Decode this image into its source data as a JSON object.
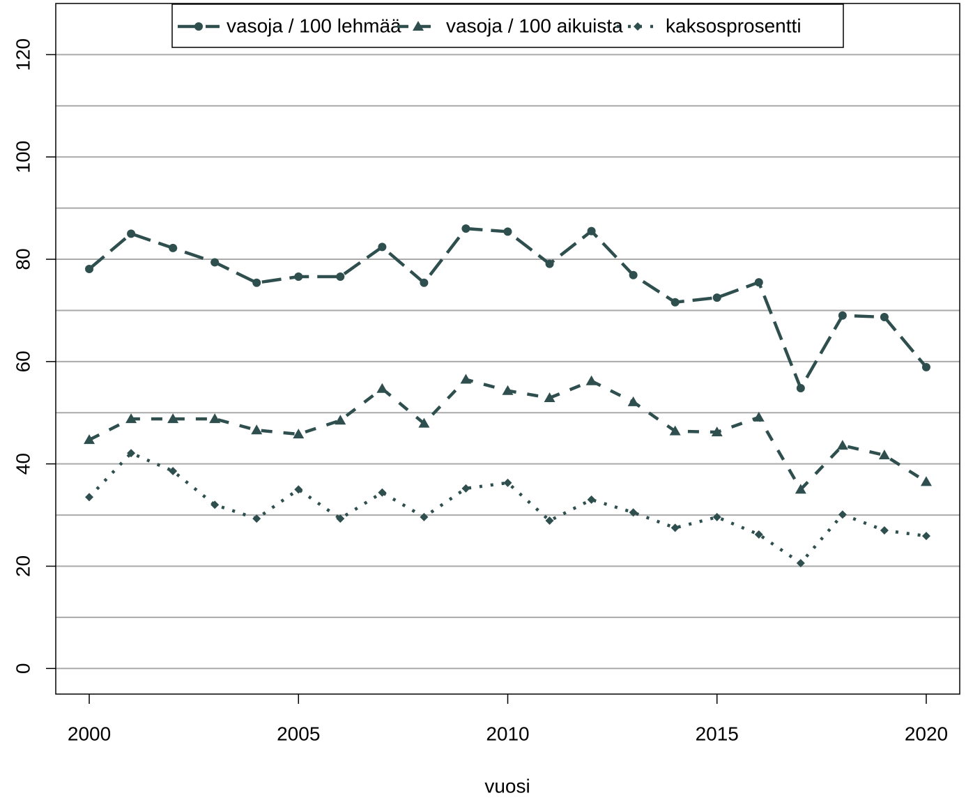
{
  "chart_data": {
    "type": "line",
    "xlabel": "vuosi",
    "x": [
      2000,
      2001,
      2002,
      2003,
      2004,
      2005,
      2006,
      2007,
      2008,
      2009,
      2010,
      2011,
      2012,
      2013,
      2014,
      2015,
      2016,
      2017,
      2018,
      2019,
      2020
    ],
    "series": [
      {
        "name": "vasoja / 100 lehmää",
        "color": "#2f4f4f",
        "dash": "longdash",
        "marker": "circle",
        "values": [
          78.1,
          85.0,
          82.2,
          79.4,
          75.4,
          76.6,
          76.6,
          82.4,
          75.4,
          86.0,
          85.4,
          79.1,
          85.5,
          76.9,
          71.6,
          72.5,
          75.5,
          54.8,
          69.0,
          68.7,
          58.9
        ]
      },
      {
        "name": "vasoja / 100 aikuista",
        "color": "#2f4f4f",
        "dash": "dashed",
        "marker": "triangle",
        "values": [
          44.7,
          48.8,
          48.8,
          48.8,
          46.6,
          45.8,
          48.5,
          54.7,
          47.9,
          56.5,
          54.3,
          52.9,
          56.2,
          52.1,
          46.4,
          46.2,
          49.1,
          35.0,
          43.6,
          41.7,
          36.5
        ]
      },
      {
        "name": "kaksosprosentti",
        "color": "#2f4f4f",
        "dash": "dotted",
        "marker": "diamond",
        "values": [
          33.5,
          42.1,
          38.6,
          32.0,
          29.3,
          35.0,
          29.3,
          34.4,
          29.6,
          35.2,
          36.3,
          28.9,
          33.0,
          30.5,
          27.5,
          29.6,
          26.2,
          20.6,
          30.1,
          27.0,
          25.9
        ]
      }
    ],
    "xlim": [
      1999.2,
      2020.8
    ],
    "xticks": [
      2000,
      2005,
      2010,
      2015,
      2020
    ],
    "ylim": [
      -5,
      130
    ],
    "yticks": [
      0,
      20,
      40,
      60,
      80,
      100,
      120
    ],
    "ygrid": [
      0,
      10,
      20,
      30,
      40,
      50,
      60,
      70,
      80,
      90,
      100,
      110,
      120
    ],
    "grid": true,
    "legend": "top"
  }
}
